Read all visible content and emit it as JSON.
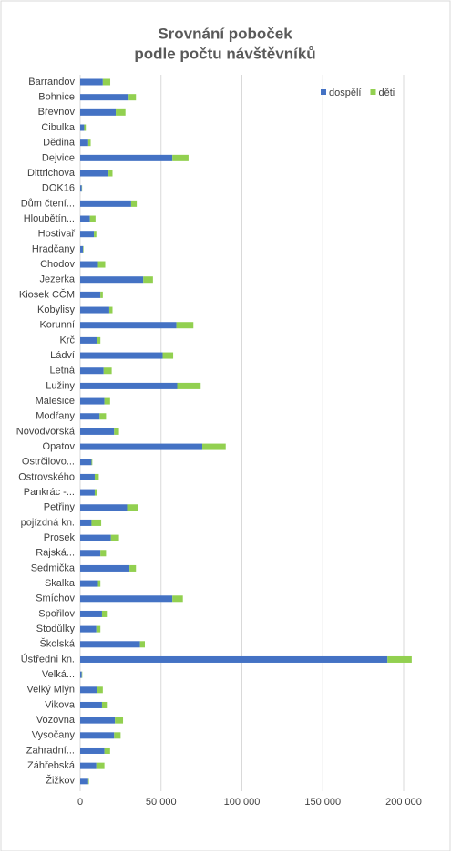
{
  "chart_data": {
    "type": "stacked-bar-horizontal",
    "title": [
      "Srovnání poboček",
      "podle počtu návštěvníků"
    ],
    "categories": [
      "Barrandov",
      "Bohnice",
      "Břevnov",
      "Cibulka",
      "Dědina",
      "Dejvice",
      "Dittrichova",
      "DOK16",
      "Dům čtení...",
      "Hloubětín...",
      "Hostivař",
      "Hradčany",
      "Chodov",
      "Jezerka",
      "Kiosek CČM",
      "Kobylisy",
      "Korunní",
      "Krč",
      "Ládví",
      "Letná",
      "Lužiny",
      "Malešice",
      "Modřany",
      "Novodvorská",
      "Opatov",
      "Ostrčilovo...",
      "Ostrovského",
      "Pankrác -...",
      "Petřiny",
      "pojízdná kn.",
      "Prosek",
      "Rajská...",
      "Sedmička",
      "Skalka",
      "Smíchov",
      "Spořilov",
      "Stodůlky",
      "Školská",
      "Ústřední kn.",
      "Velká...",
      "Velký Mlýn",
      "Vikova",
      "Vozovna",
      "Vysočany",
      "Zahradní...",
      "Záhřebská",
      "Žižkov"
    ],
    "series": [
      {
        "name": "dospělí",
        "color": "#4472c4",
        "values": [
          14000,
          30000,
          22000,
          2500,
          5000,
          57000,
          17500,
          1000,
          31500,
          6000,
          8500,
          1800,
          11000,
          39000,
          12500,
          18000,
          59500,
          10500,
          51000,
          14500,
          60000,
          15000,
          12000,
          21000,
          75500,
          7000,
          9000,
          9000,
          29000,
          7000,
          19000,
          12500,
          30500,
          11000,
          57000,
          13500,
          10000,
          37000,
          190000,
          1000,
          10500,
          13500,
          21500,
          21000,
          15000,
          10000,
          5000
        ]
      },
      {
        "name": "děti",
        "color": "#92d050",
        "values": [
          4600,
          4500,
          6000,
          1000,
          1500,
          10000,
          2500,
          200,
          3500,
          3500,
          1500,
          300,
          4500,
          6000,
          1500,
          2000,
          10500,
          2000,
          6500,
          5000,
          14500,
          3500,
          4000,
          3000,
          14500,
          500,
          2500,
          1500,
          7000,
          6000,
          5000,
          3500,
          4000,
          1500,
          6500,
          3000,
          2500,
          3000,
          15000,
          300,
          3500,
          3000,
          5000,
          4000,
          3500,
          5000,
          400
        ]
      }
    ],
    "xlim": [
      0,
      210000
    ],
    "xticks": [
      0,
      {
        "value": 50000,
        "label": "50 000"
      },
      {
        "value": 100000,
        "label": "100 000"
      },
      {
        "value": 150000,
        "label": "150 000"
      },
      {
        "value": 200000,
        "label": "200 000"
      }
    ],
    "grid": true,
    "legend": "top-right"
  }
}
